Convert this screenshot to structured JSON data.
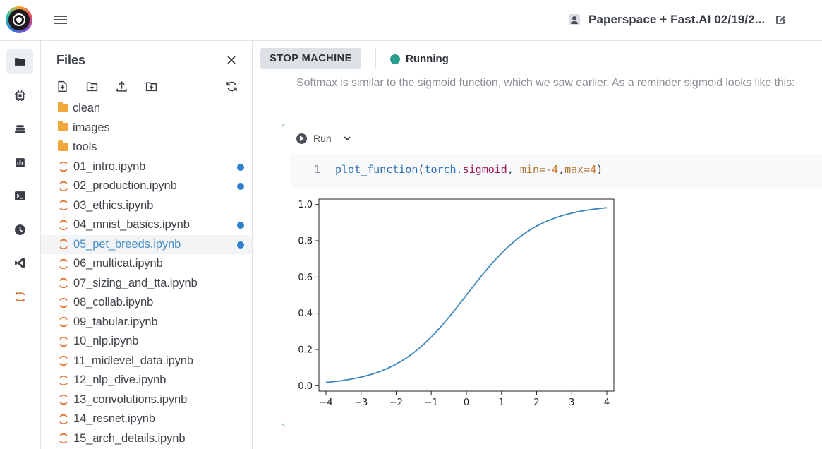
{
  "header": {
    "notebook_title": "Paperspace + Fast.AI 02/19/2...",
    "icons": [
      "logo",
      "menu-icon",
      "person-icon",
      "edit-icon"
    ]
  },
  "rail": {
    "items": [
      "folder-icon",
      "chip-icon",
      "stack-icon",
      "chart-icon",
      "terminal-icon",
      "clock-icon",
      "vscode-icon",
      "jupyter-icon"
    ]
  },
  "files": {
    "title": "Files",
    "items": [
      {
        "name": "clean",
        "type": "folder",
        "modified": false
      },
      {
        "name": "images",
        "type": "folder",
        "modified": false
      },
      {
        "name": "tools",
        "type": "folder",
        "modified": false
      },
      {
        "name": "01_intro.ipynb",
        "type": "notebook",
        "modified": true
      },
      {
        "name": "02_production.ipynb",
        "type": "notebook",
        "modified": true
      },
      {
        "name": "03_ethics.ipynb",
        "type": "notebook",
        "modified": false
      },
      {
        "name": "04_mnist_basics.ipynb",
        "type": "notebook",
        "modified": true
      },
      {
        "name": "05_pet_breeds.ipynb",
        "type": "notebook",
        "modified": true,
        "selected": true
      },
      {
        "name": "06_multicat.ipynb",
        "type": "notebook",
        "modified": false
      },
      {
        "name": "07_sizing_and_tta.ipynb",
        "type": "notebook",
        "modified": false
      },
      {
        "name": "08_collab.ipynb",
        "type": "notebook",
        "modified": false
      },
      {
        "name": "09_tabular.ipynb",
        "type": "notebook",
        "modified": false
      },
      {
        "name": "10_nlp.ipynb",
        "type": "notebook",
        "modified": false
      },
      {
        "name": "11_midlevel_data.ipynb",
        "type": "notebook",
        "modified": false
      },
      {
        "name": "12_nlp_dive.ipynb",
        "type": "notebook",
        "modified": false
      },
      {
        "name": "13_convolutions.ipynb",
        "type": "notebook",
        "modified": false
      },
      {
        "name": "14_resnet.ipynb",
        "type": "notebook",
        "modified": false
      },
      {
        "name": "15_arch_details.ipynb",
        "type": "notebook",
        "modified": false
      }
    ]
  },
  "toolbar": {
    "stop_label": "STOP MACHINE",
    "status_label": "Running",
    "status_color": "#2a9d8f"
  },
  "notebook": {
    "markdown_text": "Softmax is similar to the sigmoid function, which we saw earlier. As a reminder sigmoid looks like this:",
    "cell": {
      "run_label": "Run",
      "line_number": "1",
      "code": {
        "fn": "plot_function",
        "open": "(",
        "obj": "torch.",
        "attr_before_caret": "s",
        "attr_after_caret": "igmoid",
        "comma1": ", ",
        "kw_min": "min",
        "eq1": "=",
        "val_min": "-4",
        "comma2": ",",
        "kw_max": "max",
        "eq2": "=",
        "val_max": "4",
        "close": ")"
      }
    }
  },
  "chart_data": {
    "type": "line",
    "function": "sigmoid",
    "xlim": [
      -4.2,
      4.2
    ],
    "ylim": [
      -0.03,
      1.03
    ],
    "xticks": [
      -4,
      -3,
      -2,
      -1,
      0,
      1,
      2,
      3,
      4
    ],
    "xtick_labels": [
      "−4",
      "−3",
      "−2",
      "−1",
      "0",
      "1",
      "2",
      "3",
      "4"
    ],
    "yticks": [
      0.0,
      0.2,
      0.4,
      0.6,
      0.8,
      1.0
    ],
    "ytick_labels": [
      "0.0",
      "0.2",
      "0.4",
      "0.6",
      "0.8",
      "1.0"
    ],
    "series": [
      {
        "color": "#3b87bd",
        "x": [
          -4,
          -3.5,
          -3,
          -2.5,
          -2,
          -1.5,
          -1,
          -0.5,
          0,
          0.5,
          1,
          1.5,
          2,
          2.5,
          3,
          3.5,
          4
        ],
        "y": [
          0.018,
          0.029,
          0.047,
          0.076,
          0.119,
          0.182,
          0.269,
          0.378,
          0.5,
          0.622,
          0.731,
          0.818,
          0.881,
          0.924,
          0.953,
          0.971,
          0.982
        ]
      }
    ],
    "title": "",
    "xlabel": "",
    "ylabel": "",
    "grid": false
  }
}
